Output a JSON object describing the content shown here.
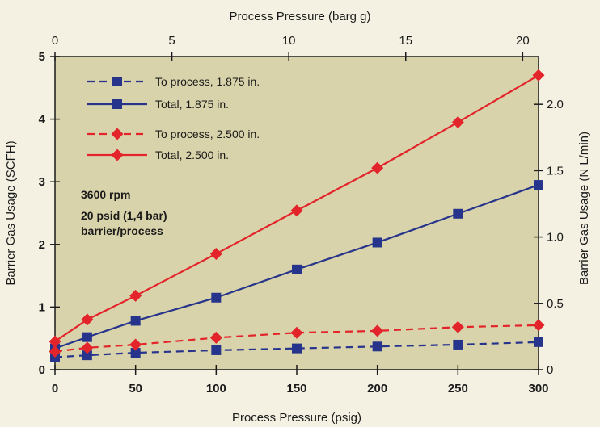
{
  "chart_data": {
    "type": "line",
    "x_axis_bottom": {
      "label": "Process Pressure (psig)",
      "range": [
        0,
        300
      ],
      "ticks": [
        "0",
        "50",
        "100",
        "150",
        "200",
        "250",
        "300"
      ]
    },
    "x_axis_top": {
      "label": "Process Pressure (barg g)",
      "range": [
        0,
        20.68
      ],
      "ticks": [
        "0",
        "5",
        "10",
        "15",
        "20"
      ]
    },
    "y_axis_left": {
      "label": "Barrier Gas Usage (SCFH)",
      "range": [
        0,
        5
      ],
      "ticks": [
        "0",
        "1",
        "2",
        "3",
        "4",
        "5"
      ]
    },
    "y_axis_right": {
      "label": "Barrier Gas Usage (N L/min)",
      "range": [
        0,
        2.36
      ],
      "ticks": [
        "0",
        "0.5",
        "1.0",
        "1.5",
        "2.0"
      ]
    },
    "grid": false,
    "legend_position": "top-left",
    "annotations": [
      "3600 rpm",
      "20 psid (1,4 bar)",
      "barrier/process"
    ],
    "colors": {
      "blue": "#27348b",
      "red": "#e3242b",
      "plot_bg": "#d8d3aa",
      "page_bg": "#f4f1e3"
    },
    "series": [
      {
        "name": "To process, 1.875 in.",
        "color": "#27348b",
        "dash": true,
        "marker": "square",
        "x": [
          0,
          20,
          50,
          100,
          150,
          200,
          250,
          300
        ],
        "y": [
          0.2,
          0.23,
          0.27,
          0.31,
          0.34,
          0.37,
          0.4,
          0.44
        ]
      },
      {
        "name": "Total, 1.875 in.",
        "color": "#27348b",
        "dash": false,
        "marker": "square",
        "x": [
          0,
          20,
          50,
          100,
          150,
          200,
          250,
          300
        ],
        "y": [
          0.34,
          0.52,
          0.78,
          1.15,
          1.6,
          2.03,
          2.49,
          2.95
        ]
      },
      {
        "name": "To process, 2.500 in.",
        "color": "#e3242b",
        "dash": true,
        "marker": "diamond",
        "x": [
          0,
          20,
          50,
          100,
          150,
          200,
          250,
          300
        ],
        "y": [
          0.29,
          0.35,
          0.4,
          0.51,
          0.59,
          0.62,
          0.68,
          0.71
        ]
      },
      {
        "name": "Total, 2.500 in.",
        "color": "#e3242b",
        "dash": false,
        "marker": "diamond",
        "x": [
          0,
          20,
          50,
          100,
          150,
          200,
          250,
          300
        ],
        "y": [
          0.45,
          0.8,
          1.18,
          1.85,
          2.54,
          3.22,
          3.95,
          4.7
        ]
      }
    ]
  }
}
